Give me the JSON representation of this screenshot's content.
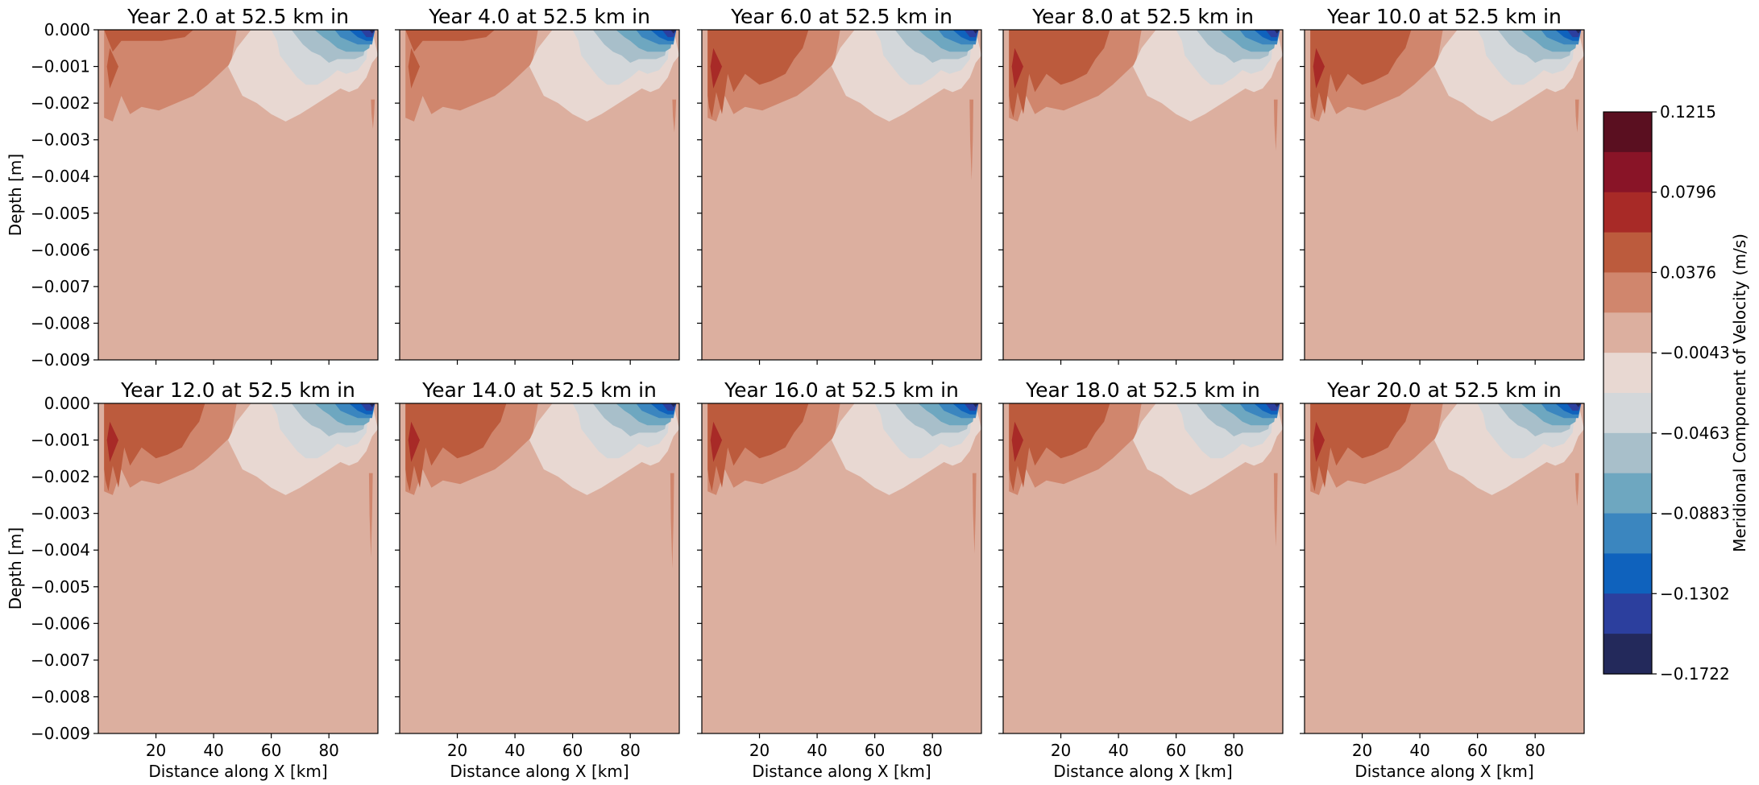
{
  "chart_data": {
    "type": "heatmap",
    "subtype": "filled-contour small multiples",
    "panels": [
      {
        "title": "Year 2.0 at 52.5 km in",
        "year": 2.0
      },
      {
        "title": "Year 4.0 at 52.5 km in",
        "year": 4.0
      },
      {
        "title": "Year 6.0 at 52.5 km in",
        "year": 6.0
      },
      {
        "title": "Year 8.0 at 52.5 km in",
        "year": 8.0
      },
      {
        "title": "Year 10.0 at 52.5 km in",
        "year": 10.0
      },
      {
        "title": "Year 12.0 at 52.5 km in",
        "year": 12.0
      },
      {
        "title": "Year 14.0 at 52.5 km in",
        "year": 14.0
      },
      {
        "title": "Year 16.0 at 52.5 km in",
        "year": 16.0
      },
      {
        "title": "Year 18.0 at 52.5 km in",
        "year": 18.0
      },
      {
        "title": "Year 20.0 at 52.5 km in",
        "year": 20.0
      }
    ],
    "xlabel": "Distance along X [km]",
    "ylabel": "Depth [m]",
    "xlim": [
      0,
      97
    ],
    "ylim": [
      -0.009,
      0.0
    ],
    "x_ticks": [
      20,
      40,
      60,
      80
    ],
    "x_tick_labels": [
      "20",
      "40",
      "60",
      "80"
    ],
    "y_ticks": [
      0.0,
      -0.001,
      -0.002,
      -0.003,
      -0.004,
      -0.005,
      -0.006,
      -0.007,
      -0.008,
      -0.009
    ],
    "y_tick_labels": [
      "0.000",
      "−0.001",
      "−0.002",
      "−0.003",
      "−0.004",
      "−0.005",
      "−0.006",
      "−0.007",
      "−0.008",
      "−0.009"
    ],
    "colorbar": {
      "label": "Meridional Component of Velocity (m/s)",
      "vmin": -0.1722,
      "vmax": 0.1215,
      "tick_values": [
        0.1215,
        0.0796,
        0.0376,
        -0.0043,
        -0.0463,
        -0.0883,
        -0.1302,
        -0.1722
      ],
      "tick_labels": [
        "0.1215",
        "0.0796",
        "0.0376",
        "−0.0043",
        "−0.0463",
        "−0.0883",
        "−0.1302",
        "−0.1722"
      ],
      "levels_top_to_bottom": [
        "#5a0f20",
        "#891427",
        "#a82a27",
        "#bc5b3d",
        "#d0866d",
        "#dcaf9f",
        "#e8d8d2",
        "#d3d7da",
        "#a8bfca",
        "#6ea7c0",
        "#3b86bf",
        "#0f62bd",
        "#2c3f9e",
        "#23295b"
      ],
      "position": "right"
    },
    "field_description_values": {
      "background_level_ms": [
        -0.0043,
        0.0167
      ],
      "surface_west_max_ms": [
        0.0586,
        0.0796
      ],
      "surface_east_min_ms": [
        -0.1512,
        -0.1302
      ]
    }
  }
}
